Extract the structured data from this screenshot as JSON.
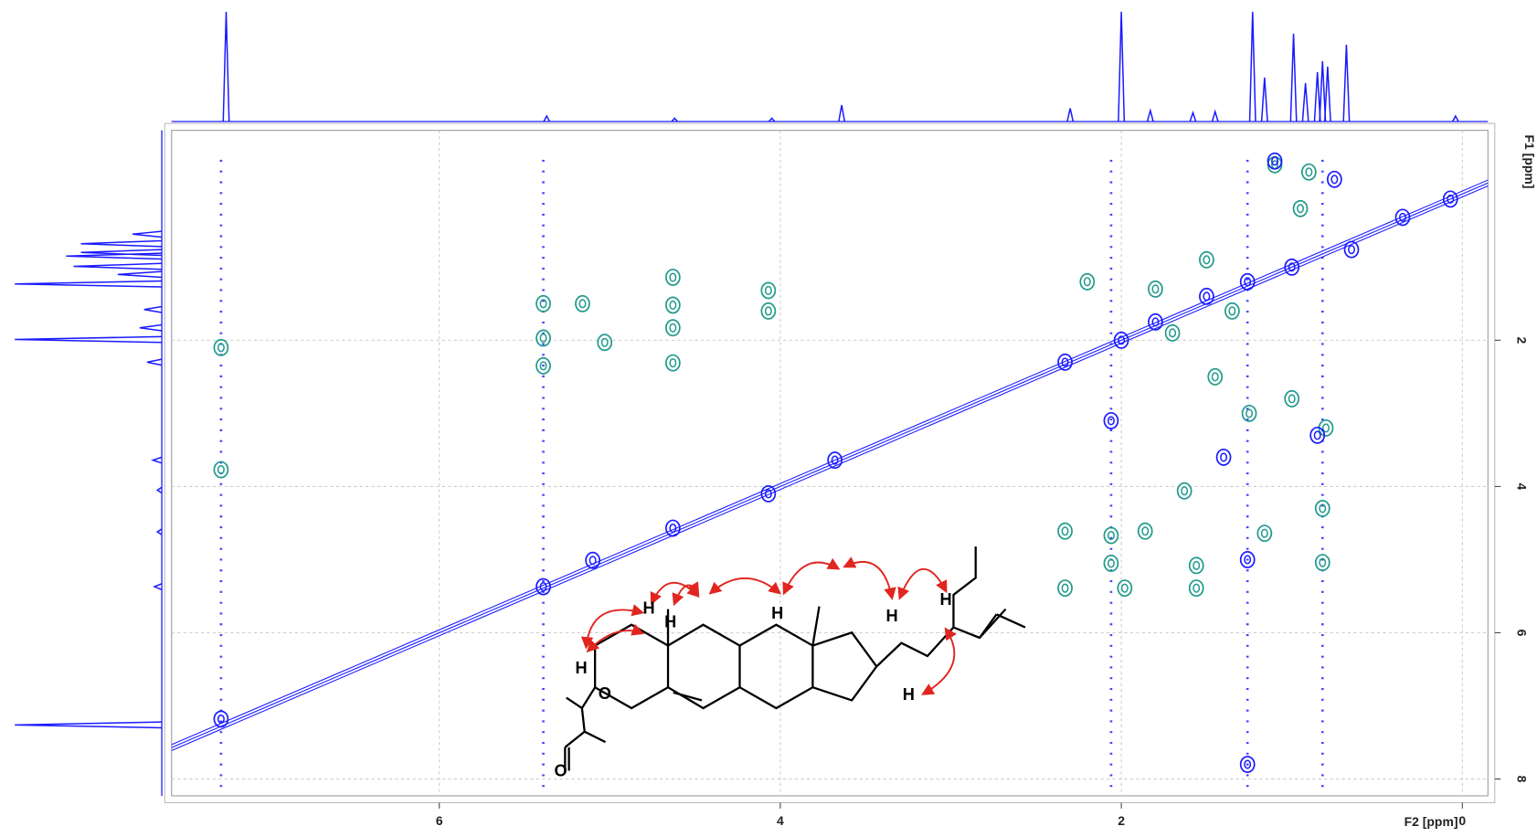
{
  "chart_data": {
    "type": "contour",
    "x_label": "F2 [ppm]",
    "y_label": "F1 [ppm]",
    "xlim": [
      7.57,
      -0.15
    ],
    "ylim": [
      -0.87,
      8.23
    ],
    "xticks": [
      6,
      4,
      2,
      0
    ],
    "yticks": [
      2,
      4,
      6,
      8
    ],
    "grid": true,
    "diagonal": true,
    "series": [
      {
        "color": "#1f9a8c",
        "x": [
          7.28,
          7.28,
          5.39,
          5.39,
          5.39,
          5.16,
          5.03,
          4.63,
          4.63,
          4.63,
          4.63,
          4.07,
          4.07,
          2.33,
          2.33,
          2.06,
          2.06,
          1.98,
          1.86,
          1.63,
          1.56,
          1.56,
          1.16,
          0.82,
          0.82,
          1.5,
          1.1,
          0.9,
          1.8,
          1.35,
          2.2,
          1.0,
          0.8,
          1.7,
          1.25,
          1.45,
          0.95
        ],
        "y": [
          2.1,
          3.77,
          1.5,
          1.97,
          2.35,
          1.5,
          2.03,
          1.14,
          1.52,
          1.83,
          2.31,
          1.32,
          1.6,
          4.61,
          5.39,
          4.67,
          5.05,
          5.39,
          4.61,
          4.06,
          5.08,
          5.39,
          4.64,
          4.3,
          5.04,
          0.9,
          -0.4,
          -0.3,
          1.3,
          1.6,
          1.2,
          2.8,
          3.2,
          1.9,
          3.0,
          2.5,
          0.2
        ]
      },
      {
        "color": "#1a1aff",
        "x": [
          7.28,
          5.39,
          5.1,
          4.63,
          4.07,
          3.68,
          2.33,
          2.0,
          1.8,
          1.5,
          1.26,
          1.0,
          0.65,
          0.35,
          0.07,
          1.26,
          1.26,
          2.06,
          0.85,
          1.4,
          1.1,
          0.75
        ],
        "y": [
          7.18,
          5.37,
          5.01,
          4.57,
          4.1,
          3.64,
          2.3,
          2.0,
          1.75,
          1.4,
          1.2,
          1.0,
          0.76,
          0.32,
          0.07,
          7.8,
          5.0,
          3.1,
          3.3,
          3.6,
          -0.45,
          -0.2
        ]
      }
    ],
    "t1_noise": {
      "color": "#1a1aff",
      "x": [
        7.28,
        5.39,
        2.06,
        1.26,
        0.82
      ]
    },
    "top_projection": {
      "color": "#1a1aff",
      "x": [
        7.25,
        5.37,
        4.62,
        4.05,
        3.64,
        2.3,
        2.0,
        1.83,
        1.58,
        1.45,
        1.23,
        1.16,
        0.99,
        0.92,
        0.85,
        0.82,
        0.79,
        0.68,
        0.04
      ],
      "values": [
        100,
        5,
        3,
        3,
        15,
        12,
        100,
        10,
        8,
        9,
        100,
        40,
        80,
        35,
        45,
        55,
        50,
        70,
        5
      ]
    },
    "left_projection": {
      "color": "#1a1aff",
      "y": [
        7.26,
        5.37,
        4.62,
        4.05,
        3.64,
        2.3,
        1.99,
        1.83,
        1.58,
        1.23,
        1.1,
        0.99,
        0.85,
        0.8,
        0.68,
        0.55
      ],
      "values": [
        100,
        5,
        3,
        3,
        6,
        10,
        100,
        15,
        12,
        100,
        30,
        60,
        65,
        55,
        55,
        20
      ]
    }
  },
  "structure": {
    "labels": [
      "H",
      "H",
      "H",
      "H",
      "H",
      "H",
      "H",
      "O",
      "O"
    ]
  }
}
